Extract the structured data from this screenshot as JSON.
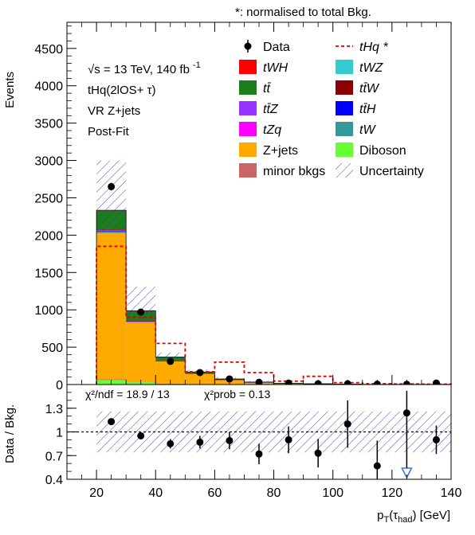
{
  "header_note": "*: normalised to total Bkg.",
  "info": {
    "energy": "√s = 13 TeV, 140 fb",
    "lumi_exp": "-1",
    "channel": "tHq(2lOS+ τ)",
    "region": "VR Z+jets",
    "fit": "Post-Fit"
  },
  "legend": [
    {
      "label": "Data",
      "kind": "marker",
      "color": "#000000"
    },
    {
      "label": "tHq *",
      "kind": "dashed",
      "color": "#dd0000"
    },
    {
      "label": "tWH",
      "kind": "box",
      "color": "#ff0000"
    },
    {
      "label": "tWZ",
      "kind": "box",
      "color": "#33cccc"
    },
    {
      "label": "tt̄",
      "kind": "box",
      "color": "#1a7f1a"
    },
    {
      "label": "tt̄W",
      "kind": "box",
      "color": "#8b0000"
    },
    {
      "label": "tt̄Z",
      "kind": "box",
      "color": "#9933ff"
    },
    {
      "label": "tt̄H",
      "kind": "box",
      "color": "#0000ff"
    },
    {
      "label": "tZq",
      "kind": "box",
      "color": "#ff00ff"
    },
    {
      "label": "tW",
      "kind": "box",
      "color": "#339999"
    },
    {
      "label": "Z+jets",
      "kind": "box",
      "color": "#ffaa00"
    },
    {
      "label": "Diboson",
      "kind": "box",
      "color": "#66ff33"
    },
    {
      "label": "minor bkgs",
      "kind": "box",
      "color": "#cc6666"
    },
    {
      "label": "Uncertainty",
      "kind": "hatch",
      "color": "#3333aa"
    }
  ],
  "ratio_text": {
    "chi2": "χ²/ndf = 18.9 / 13",
    "prob": "χ²prob = 0.13"
  },
  "chart_data": [
    {
      "type": "bar",
      "subtype": "stacked-histogram",
      "ylabel": "Events",
      "xlabel": "p_T(τ_had) [GeV]",
      "xlim": [
        10,
        140
      ],
      "ylim": [
        0,
        4850
      ],
      "bin_edges": [
        20,
        30,
        40,
        50,
        60,
        70,
        80,
        90,
        100,
        110,
        120,
        130,
        140
      ],
      "yticks": [
        0,
        500,
        1000,
        1500,
        2000,
        2500,
        3000,
        3500,
        4000,
        4500
      ],
      "xticks": [
        20,
        40,
        60,
        80,
        100,
        120,
        140
      ],
      "series": [
        {
          "name": "Diboson",
          "color": "#66ff33",
          "values": [
            60,
            30,
            10,
            5,
            3,
            2,
            1,
            1,
            1,
            0,
            0,
            0
          ]
        },
        {
          "name": "minor bkgs",
          "color": "#cc6666",
          "values": [
            10,
            5,
            2,
            1,
            1,
            0,
            0,
            0,
            0,
            0,
            0,
            0
          ]
        },
        {
          "name": "Z+jets",
          "color": "#ffaa00",
          "values": [
            1960,
            800,
            300,
            140,
            60,
            25,
            12,
            8,
            5,
            3,
            2,
            2
          ]
        },
        {
          "name": "tW",
          "color": "#339999",
          "values": [
            15,
            6,
            3,
            2,
            1,
            1,
            1,
            0,
            0,
            0,
            0,
            0
          ]
        },
        {
          "name": "tZq",
          "color": "#ff00ff",
          "values": [
            3,
            2,
            1,
            1,
            0,
            0,
            0,
            0,
            0,
            0,
            0,
            0
          ]
        },
        {
          "name": "tt̄H",
          "color": "#0000ff",
          "values": [
            8,
            4,
            2,
            1,
            1,
            0,
            0,
            0,
            0,
            0,
            0,
            0
          ]
        },
        {
          "name": "tt̄Z",
          "color": "#9933ff",
          "values": [
            12,
            6,
            3,
            2,
            1,
            1,
            0,
            0,
            0,
            0,
            0,
            0
          ]
        },
        {
          "name": "tt̄W",
          "color": "#8b0000",
          "values": [
            8,
            4,
            2,
            1,
            1,
            0,
            0,
            0,
            0,
            0,
            0,
            0
          ]
        },
        {
          "name": "tt̄",
          "color": "#1a7f1a",
          "values": [
            254,
            130,
            45,
            15,
            7,
            4,
            2,
            1,
            1,
            0,
            0,
            0
          ]
        },
        {
          "name": "tWZ",
          "color": "#33cccc",
          "values": [
            2,
            1,
            1,
            0,
            0,
            0,
            0,
            0,
            0,
            0,
            0,
            0
          ]
        },
        {
          "name": "tWH",
          "color": "#ff0000",
          "values": [
            1,
            1,
            0,
            0,
            0,
            0,
            0,
            0,
            0,
            0,
            0,
            0
          ]
        }
      ],
      "uncertainty": {
        "name": "Uncertainty",
        "low": [
          2050,
          880,
          330,
          150,
          68,
          30,
          15,
          9,
          6,
          3,
          2,
          2
        ],
        "high": [
          3000,
          1310,
          430,
          200,
          100,
          50,
          25,
          17,
          10,
          6,
          4,
          4
        ]
      },
      "signal": {
        "name": "tHq *",
        "color": "#dd0000",
        "values": [
          1850,
          900,
          550,
          170,
          300,
          160,
          45,
          110,
          25,
          10,
          8,
          5
        ]
      },
      "data": {
        "name": "Data",
        "x": [
          25,
          35,
          45,
          55,
          65,
          75,
          85,
          95,
          105,
          115,
          125,
          135
        ],
        "y": [
          2650,
          970,
          310,
          160,
          75,
          30,
          20,
          10,
          10,
          5,
          2,
          20
        ]
      }
    },
    {
      "type": "scatter",
      "subtype": "ratio",
      "ylabel": "Data / Bkg.",
      "xlabel": "p_T(τ_had) [GeV]",
      "xlim": [
        10,
        140
      ],
      "ylim": [
        0.4,
        1.6
      ],
      "yticks": [
        0.4,
        0.7,
        1,
        1.3
      ],
      "xticks": [
        20,
        40,
        60,
        80,
        100,
        120,
        140
      ],
      "reference_line": 1,
      "band": {
        "low": [
          0.74,
          0.74,
          0.74,
          0.74,
          0.74,
          0.74,
          0.74,
          0.74,
          0.74,
          0.74,
          0.74,
          0.74
        ],
        "high": [
          1.26,
          1.26,
          1.26,
          1.26,
          1.26,
          1.26,
          1.26,
          1.26,
          1.26,
          1.26,
          1.26,
          1.26
        ]
      },
      "points": {
        "x": [
          25,
          35,
          45,
          55,
          65,
          75,
          85,
          95,
          105,
          115,
          125,
          135
        ],
        "y": [
          1.13,
          0.95,
          0.85,
          0.87,
          0.89,
          0.72,
          0.9,
          0.73,
          1.1,
          0.57,
          1.24,
          0.9
        ],
        "err": [
          0.03,
          0.04,
          0.06,
          0.08,
          0.11,
          0.13,
          0.17,
          0.18,
          0.3,
          0.32,
          0.28,
          0.18
        ]
      },
      "off_scale": {
        "x": 125,
        "direction": "down",
        "color": "#4477dd"
      }
    }
  ]
}
